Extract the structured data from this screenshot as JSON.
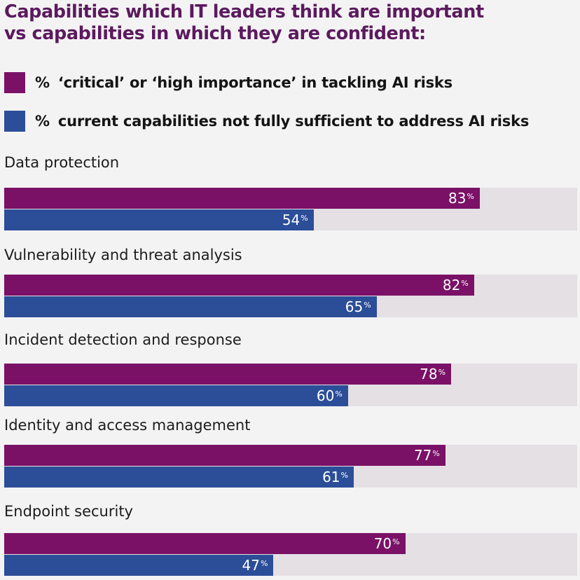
{
  "colors": {
    "critical": "#7a1167",
    "insufficient": "#2c4e98",
    "track": "#e5e0e4",
    "title": "#5b1a5e"
  },
  "title_line1": "Capabilities which IT leaders think are important",
  "title_line2": "vs capabilities in which they are confident:",
  "legend": {
    "critical": {
      "pct": "%",
      "text": "‘critical’ or ‘high importance’ in tackling AI risks"
    },
    "insufficient": {
      "pct": "%",
      "text": "current capabilities not fully sufficient to address AI risks"
    }
  },
  "value_suffix": "%",
  "chart_data": {
    "type": "bar",
    "orientation": "horizontal",
    "categories": [
      "Data protection",
      "Vulnerability and threat analysis",
      "Incident detection and response",
      "Identity and access management",
      "Endpoint security"
    ],
    "series": [
      {
        "name": "% ‘critical’ or ‘high importance’ in tackling AI risks",
        "values": [
          83,
          82,
          78,
          77,
          70
        ]
      },
      {
        "name": "% current capabilities not fully sufficient to address AI risks",
        "values": [
          54,
          65,
          60,
          61,
          47
        ]
      }
    ],
    "xlim": [
      0,
      100
    ],
    "grid": false,
    "legend_position": "top"
  }
}
